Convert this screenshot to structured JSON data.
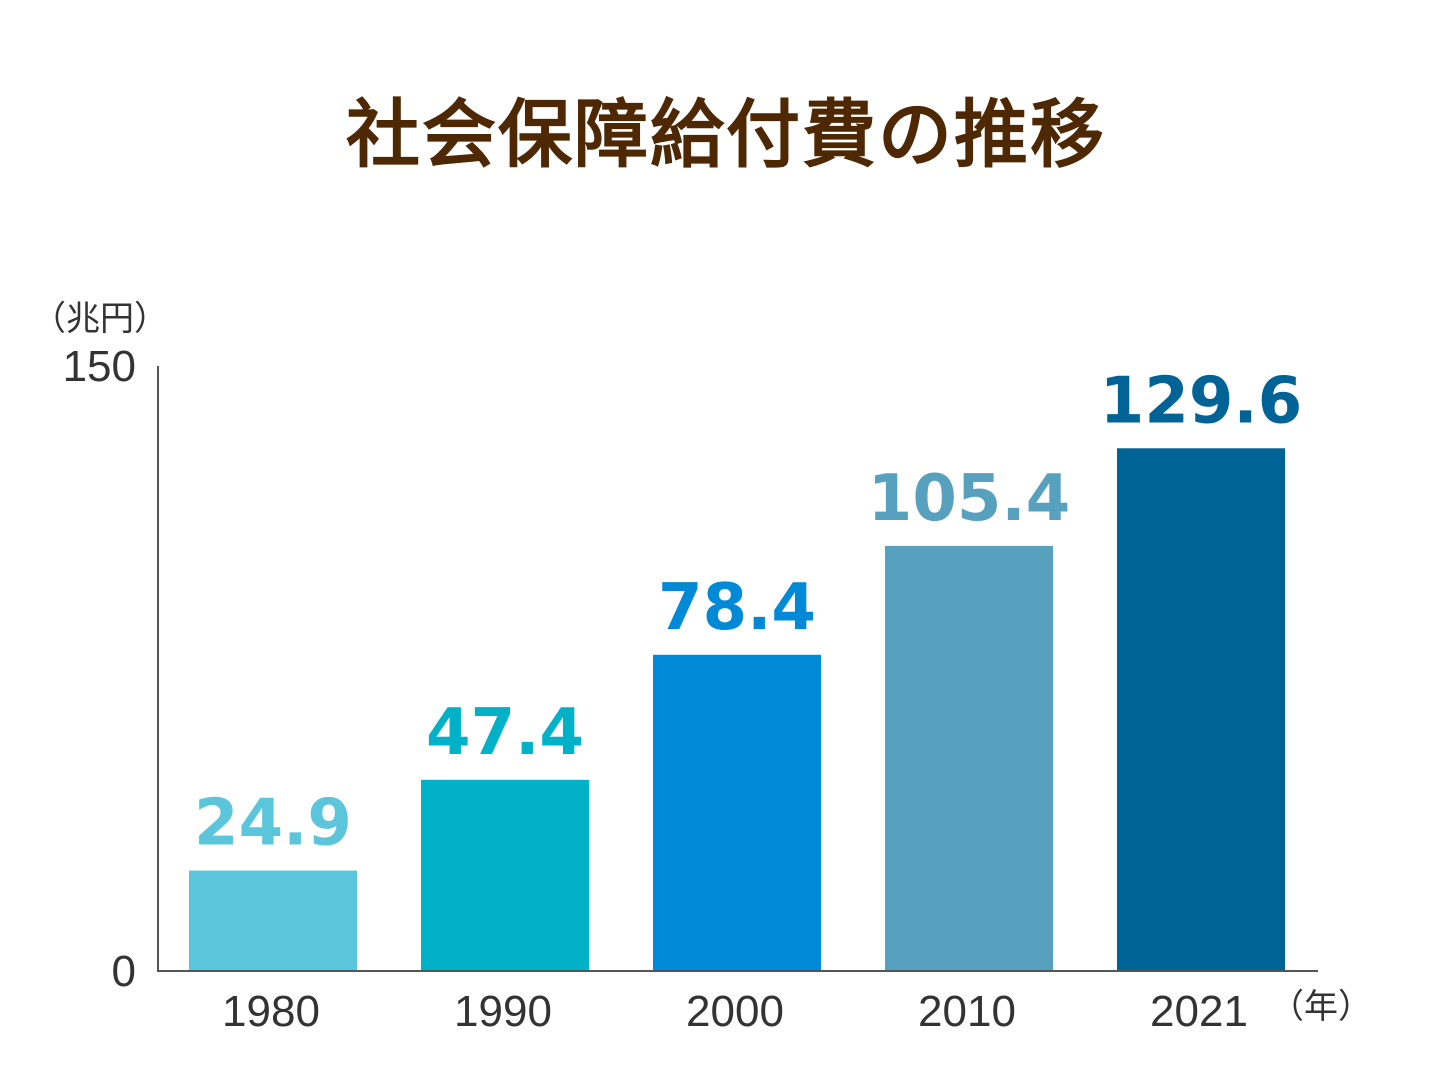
{
  "chart_data": {
    "type": "bar",
    "title": "社会保障給付費の推移",
    "categories": [
      "1980",
      "1990",
      "2000",
      "2010",
      "2021"
    ],
    "values": [
      24.9,
      47.4,
      78.4,
      105.4,
      129.6
    ],
    "value_labels": [
      "24.9",
      "47.4",
      "78.4",
      "105.4",
      "129.6"
    ],
    "colors": [
      "#5bc5dc",
      "#00b1c8",
      "#0089d6",
      "#57a1bf",
      "#006396"
    ],
    "ylabel": "（兆円）",
    "xlabel": "（年）",
    "ylim": [
      0,
      150
    ],
    "yticks": [
      0,
      150
    ],
    "ytick_labels": [
      "0",
      "150"
    ],
    "grid": false,
    "legend": "none"
  }
}
